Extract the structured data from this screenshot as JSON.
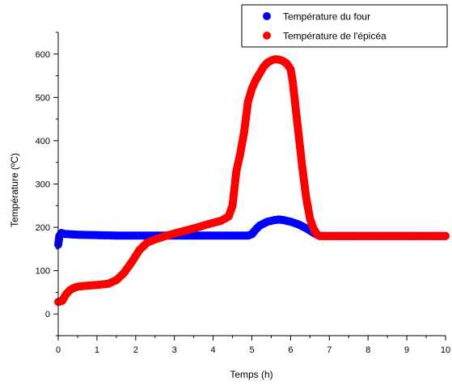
{
  "chart_data": {
    "type": "scatter",
    "xlabel": "Temps (h)",
    "ylabel": "Température (ºC)",
    "xlim": [
      0,
      10
    ],
    "ylim": [
      -50,
      650
    ],
    "xticks": [
      0,
      1,
      2,
      3,
      4,
      5,
      6,
      7,
      8,
      9,
      10
    ],
    "yticks": [
      0,
      100,
      200,
      300,
      400,
      500,
      600
    ],
    "grid": false,
    "legend_position": "top-right",
    "series": [
      {
        "name": "Température du four",
        "color": "#0000ff",
        "x": [
          0.0,
          0.03,
          0.08,
          0.15,
          0.3,
          0.5,
          1.0,
          1.5,
          2.0,
          2.5,
          3.0,
          3.5,
          4.0,
          4.5,
          4.9,
          5.0,
          5.1,
          5.2,
          5.4,
          5.6,
          5.7,
          5.8,
          6.0,
          6.2,
          6.4,
          6.6,
          6.75,
          7.0,
          8.0,
          9.0,
          10.0
        ],
        "y": [
          160,
          180,
          187,
          185,
          184,
          183,
          182,
          181,
          181,
          181,
          181,
          181,
          181,
          181,
          181,
          184,
          195,
          204,
          213,
          217,
          218,
          217,
          213,
          207,
          198,
          187,
          180,
          180,
          180,
          180,
          180
        ]
      },
      {
        "name": "Température de l'épicéa",
        "color": "#ff0000",
        "x": [
          0.0,
          0.1,
          0.2,
          0.3,
          0.4,
          0.5,
          0.7,
          1.0,
          1.3,
          1.5,
          1.7,
          1.9,
          2.1,
          2.3,
          2.5,
          2.7,
          3.0,
          3.3,
          3.6,
          3.9,
          4.2,
          4.4,
          4.5,
          4.55,
          4.6,
          4.7,
          4.8,
          4.9,
          5.0,
          5.1,
          5.2,
          5.3,
          5.4,
          5.5,
          5.6,
          5.7,
          5.8,
          5.9,
          6.0,
          6.05,
          6.1,
          6.2,
          6.3,
          6.4,
          6.5,
          6.6,
          6.7,
          6.75,
          7.0,
          8.0,
          9.0,
          10.0
        ],
        "y": [
          28,
          30,
          45,
          55,
          60,
          63,
          65,
          67,
          70,
          78,
          95,
          120,
          148,
          165,
          172,
          178,
          186,
          193,
          200,
          208,
          215,
          225,
          250,
          290,
          330,
          370,
          420,
          490,
          520,
          540,
          555,
          570,
          580,
          585,
          588,
          587,
          584,
          578,
          565,
          540,
          500,
          420,
          340,
          270,
          220,
          195,
          182,
          180,
          180,
          180,
          180,
          180
        ]
      }
    ]
  }
}
